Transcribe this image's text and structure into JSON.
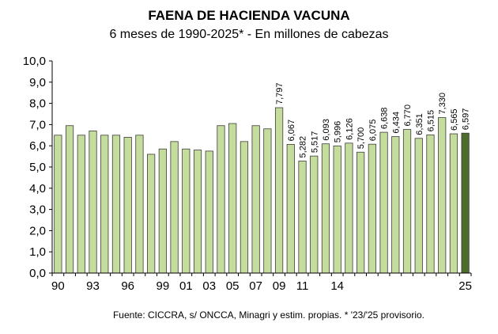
{
  "chart_data": {
    "type": "bar",
    "title": "FAENA DE HACIENDA VACUNA",
    "subtitle": "6 meses de 1990-2025* - En millones de cabezas",
    "source": "Fuente: CICCRA, s/ ONCCA, Minagri y estim. propias. * '23/'25 provisorio.",
    "ylim": [
      0,
      10
    ],
    "yticks": [
      "0,0",
      "1,0",
      "2,0",
      "3,0",
      "4,0",
      "5,0",
      "6,0",
      "7,0",
      "8,0",
      "9,0",
      "10,0"
    ],
    "categories": [
      "1990",
      "1991",
      "1992",
      "1993",
      "1994",
      "1995",
      "1996",
      "1997",
      "1998",
      "1999",
      "2000",
      "2001",
      "2002",
      "2003",
      "2004",
      "2005",
      "2006",
      "2007",
      "2008",
      "2009",
      "2010",
      "2011",
      "2012",
      "2013",
      "2014",
      "2015",
      "2016",
      "2017",
      "2018",
      "2019",
      "2020",
      "2021",
      "2022",
      "2023",
      "2024",
      "2025"
    ],
    "xtick_labels": [
      "90",
      "",
      "",
      "93",
      "",
      "",
      "96",
      "",
      "",
      "99",
      "",
      "01",
      "",
      "03",
      "",
      "05",
      "",
      "07",
      "",
      "09",
      "",
      "11",
      "",
      "",
      "14",
      "",
      "",
      "",
      "",
      "",
      "",
      "",
      "",
      "",
      "",
      "25"
    ],
    "values": [
      6.5,
      6.95,
      6.5,
      6.7,
      6.5,
      6.5,
      6.4,
      6.5,
      5.6,
      5.85,
      6.2,
      5.85,
      5.8,
      5.75,
      6.95,
      7.05,
      6.2,
      6.95,
      6.8,
      7.797,
      6.067,
      5.282,
      5.517,
      6.093,
      5.996,
      6.126,
      5.7,
      6.075,
      6.638,
      6.434,
      6.77,
      6.351,
      6.515,
      7.33,
      6.565,
      6.597
    ],
    "data_labels": [
      "",
      "",
      "",
      "",
      "",
      "",
      "",
      "",
      "",
      "",
      "",
      "",
      "",
      "",
      "",
      "",
      "",
      "",
      "",
      "7,797",
      "6,067",
      "5,282",
      "5,517",
      "6,093",
      "5,996",
      "6,126",
      "5,700",
      "6,075",
      "6,638",
      "6,434",
      "6,770",
      "6,351",
      "6,515",
      "7,330",
      "6,565",
      "6,597"
    ],
    "highlight_index": 35,
    "grid": false,
    "legend": "none"
  },
  "colors": {
    "bar_fill": "#c4dc9c",
    "bar_highlight": "#4d6b2a",
    "bar_stroke": "#3c3c3c",
    "axis": "#000000"
  }
}
